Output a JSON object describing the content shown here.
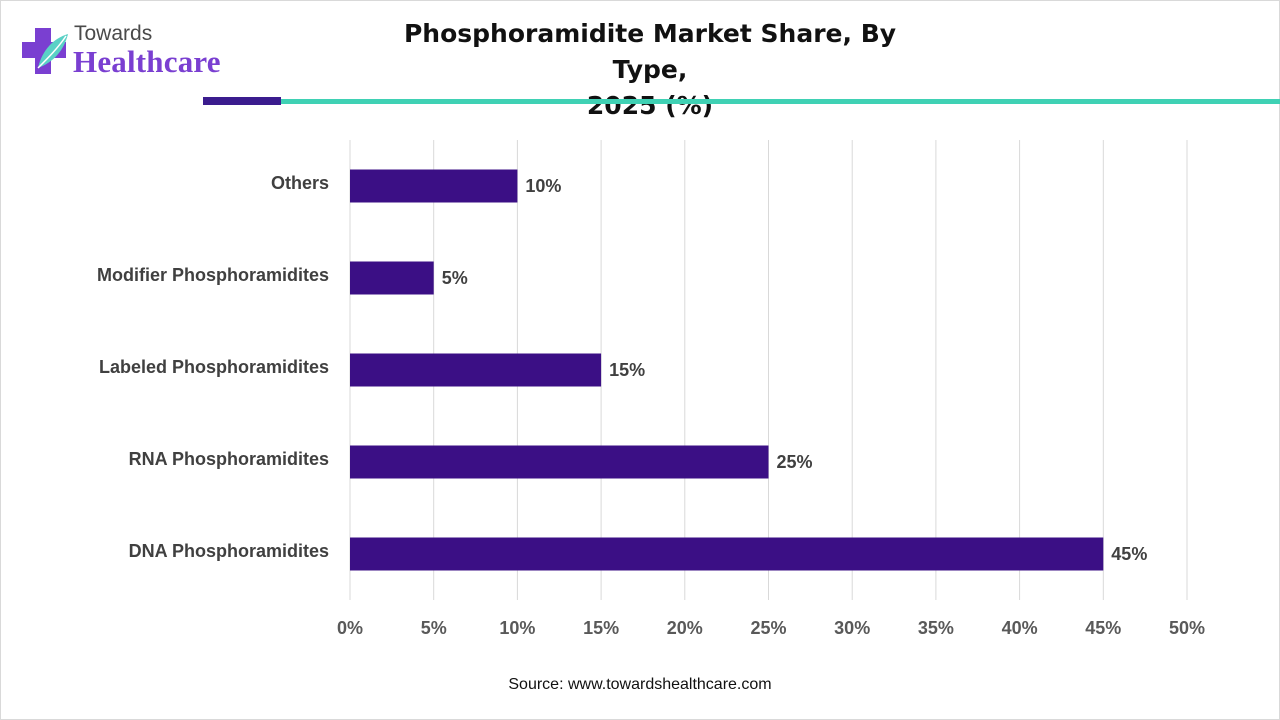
{
  "logo": {
    "brand_small": "Towards",
    "brand_large": "Healthcare"
  },
  "title_line1": "Phosphoramidite Market Share, By Type,",
  "title_line2": "2025 (%)",
  "source": "Source: www.towardshealthcare.com",
  "colors": {
    "bar": "#3b0f85",
    "accent_dark": "#3b1c8e",
    "accent_teal": "#3fd1b4",
    "logo_purple": "#7a3fd1",
    "gridline": "#d9d9d9",
    "label_text": "#404040"
  },
  "chart_data": {
    "type": "bar",
    "orientation": "horizontal",
    "title": "Phosphoramidite Market Share, By Type, 2025 (%)",
    "categories": [
      "Others",
      "Modifier Phosphoramidites",
      "Labeled Phosphoramidites",
      "RNA Phosphoramidites",
      "DNA Phosphoramidites"
    ],
    "values": [
      10,
      5,
      15,
      25,
      45
    ],
    "data_labels": [
      "10%",
      "5%",
      "15%",
      "25%",
      "45%"
    ],
    "xlim": [
      0,
      50
    ],
    "xticks": [
      "0%",
      "5%",
      "10%",
      "15%",
      "20%",
      "25%",
      "30%",
      "35%",
      "40%",
      "45%",
      "50%"
    ],
    "grid": "vertical",
    "legend": "none"
  }
}
